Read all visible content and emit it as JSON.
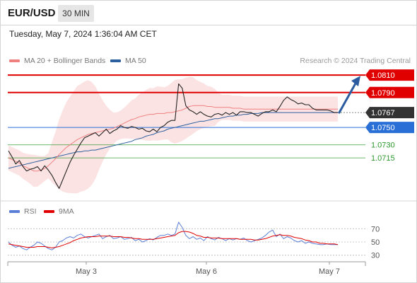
{
  "header": {
    "symbol": "EUR/USD",
    "timeframe": "30 MIN"
  },
  "datetime": "Tuesday, May 7, 2024 1:36:04 AM CET",
  "legend": {
    "ma20_label": "MA 20 + Bollinger Bands",
    "ma50_label": "MA 50",
    "credit": "Research © 2024 Trading Central",
    "rsi_label": "RSI",
    "rsi_ma_label": "9MA"
  },
  "colors": {
    "resistance": "#e00000",
    "support": "#2a6fd6",
    "target": "#2e9a2e",
    "ma20": "#f08080",
    "ma50": "#2c5f9e",
    "band": "#fbd9d9",
    "price": "#222222",
    "current_box": "#333333",
    "arrow": "#2a5b9f",
    "rsi": "#5b7fd6",
    "rsi_ma": "#e00000"
  },
  "chart_data": [
    {
      "type": "line",
      "title": "EUR/USD 30 MIN",
      "xlabel": "",
      "ylabel": "",
      "x_ticks": [
        "May 3",
        "May 6",
        "May 7"
      ],
      "ylim": [
        1.0664,
        1.0815
      ],
      "current_price": 1.0767,
      "levels": [
        {
          "value": 1.081,
          "label": "1.0810",
          "kind": "resistance"
        },
        {
          "value": 1.079,
          "label": "1.0790",
          "kind": "resistance"
        },
        {
          "value": 1.0767,
          "label": "1.0767",
          "kind": "current"
        },
        {
          "value": 1.075,
          "label": "1.0750",
          "kind": "support"
        },
        {
          "value": 1.073,
          "label": "1.0730",
          "kind": "target"
        },
        {
          "value": 1.0715,
          "label": "1.0715",
          "kind": "target"
        }
      ],
      "arrow": {
        "from": 1.0767,
        "to": 1.081,
        "direction": "up"
      },
      "series": [
        {
          "name": "Price",
          "values": [
            1.0723,
            1.0716,
            1.0708,
            1.0712,
            1.0705,
            1.07,
            1.0702,
            1.0703,
            1.0705,
            1.07,
            1.0706,
            1.0701,
            1.0695,
            1.0687,
            1.068,
            1.069,
            1.07,
            1.071,
            1.0718,
            1.0725,
            1.0732,
            1.0738,
            1.074,
            1.0742,
            1.0744,
            1.074,
            1.0744,
            1.0748,
            1.0743,
            1.0746,
            1.0748,
            1.0752,
            1.075,
            1.0749,
            1.0751,
            1.075,
            1.0748,
            1.0749,
            1.0746,
            1.0745,
            1.0748,
            1.0745,
            1.075,
            1.0752,
            1.0756,
            1.0758,
            1.0758,
            1.08,
            1.0795,
            1.0775,
            1.077,
            1.0768,
            1.0765,
            1.0768,
            1.0765,
            1.0763,
            1.0762,
            1.0765,
            1.0766,
            1.0764,
            1.0767,
            1.0765,
            1.0767,
            1.0764,
            1.0768,
            1.0768,
            1.0767,
            1.0767,
            1.0765,
            1.0763,
            1.0766,
            1.0768,
            1.0768,
            1.077,
            1.0768,
            1.0774,
            1.0781,
            1.0785,
            1.0782,
            1.078,
            1.0777,
            1.0778,
            1.0776,
            1.0776,
            1.0772,
            1.077,
            1.077,
            1.077,
            1.077,
            1.0769,
            1.0767,
            1.0767
          ]
        },
        {
          "name": "MA 20",
          "values": [
            1.0715,
            1.0713,
            1.0711,
            1.0709,
            1.0706,
            1.0704,
            1.0702,
            1.07,
            1.07,
            1.0701,
            1.0703,
            1.0706,
            1.071,
            1.0714,
            1.0719,
            1.0723,
            1.0727,
            1.073,
            1.0733,
            1.0736,
            1.0738,
            1.074,
            1.0742,
            1.0743,
            1.0744,
            1.0745,
            1.0746,
            1.0747,
            1.0748,
            1.0749,
            1.0751,
            1.0753,
            1.0755,
            1.0757,
            1.0759,
            1.076,
            1.0762,
            1.0763,
            1.0764,
            1.0765,
            1.0765,
            1.0766,
            1.0766,
            1.0766,
            1.0767,
            1.0767,
            1.0768,
            1.0769,
            1.077,
            1.0772,
            1.0774,
            1.0775,
            1.0775,
            1.0775,
            1.0775,
            1.0774,
            1.0774,
            1.0773,
            1.0773,
            1.0773,
            1.0773,
            1.0773,
            1.0772,
            1.0772,
            1.0772,
            1.0771,
            1.0771,
            1.0771,
            1.0771,
            1.0771,
            1.0771,
            1.0771,
            1.0771,
            1.0771,
            1.0771,
            1.0771,
            1.0771,
            1.0771,
            1.0771,
            1.0771,
            1.0771,
            1.0771,
            1.0771,
            1.0771,
            1.0771,
            1.0771,
            1.0771,
            1.0771,
            1.0771,
            1.0771,
            1.0771,
            1.0771
          ]
        },
        {
          "name": "MA 50",
          "values": [
            1.0703,
            1.0704,
            1.0705,
            1.0706,
            1.0707,
            1.0708,
            1.0709,
            1.071,
            1.0711,
            1.0712,
            1.0713,
            1.0714,
            1.0715,
            1.0716,
            1.0717,
            1.0718,
            1.0719,
            1.072,
            1.0721,
            1.0722,
            1.0722,
            1.0723,
            1.0723,
            1.0724,
            1.0724,
            1.0725,
            1.0726,
            1.0727,
            1.0728,
            1.0729,
            1.073,
            1.0731,
            1.0732,
            1.0733,
            1.0734,
            1.0736,
            1.0737,
            1.0738,
            1.074,
            1.0741,
            1.0742,
            1.0744,
            1.0745,
            1.0746,
            1.0748,
            1.0749,
            1.075,
            1.0751,
            1.0752,
            1.0753,
            1.0754,
            1.0755,
            1.0756,
            1.0757,
            1.0757,
            1.0758,
            1.0759,
            1.076,
            1.076,
            1.0761,
            1.0762,
            1.0763,
            1.0763,
            1.0764,
            1.0764,
            1.0765,
            1.0765,
            1.0766,
            1.0766,
            1.0766,
            1.0767,
            1.0767,
            1.0767,
            1.0767,
            1.0767,
            1.0767,
            1.0767,
            1.0767,
            1.0767,
            1.0767,
            1.0767,
            1.0767,
            1.0767,
            1.0767,
            1.0767,
            1.0767,
            1.0767,
            1.0767,
            1.0767,
            1.0767,
            1.0767,
            1.0767
          ]
        }
      ]
    },
    {
      "type": "line",
      "title": "",
      "xlabel": "",
      "ylabel": "",
      "yticks": [
        70,
        50,
        30
      ],
      "ylim": [
        20,
        80
      ],
      "series": [
        {
          "name": "RSI",
          "values": [
            50,
            45,
            42,
            44,
            40,
            38,
            42,
            45,
            50,
            48,
            44,
            40,
            38,
            42,
            50,
            52,
            56,
            58,
            56,
            60,
            62,
            58,
            56,
            58,
            60,
            62,
            55,
            58,
            60,
            55,
            56,
            58,
            54,
            55,
            57,
            52,
            54,
            50,
            52,
            55,
            53,
            57,
            60,
            60,
            62,
            60,
            62,
            80,
            72,
            60,
            55,
            58,
            54,
            56,
            52,
            58,
            55,
            53,
            57,
            55,
            52,
            55,
            53,
            55,
            54,
            56,
            52,
            50,
            52,
            54,
            56,
            60,
            65,
            68,
            58,
            62,
            55,
            58,
            56,
            52,
            50,
            52,
            48,
            50,
            48,
            47,
            46,
            46,
            47,
            46,
            46,
            46
          ]
        },
        {
          "name": "9MA",
          "values": [
            47,
            46,
            45,
            44,
            43,
            42,
            42,
            42,
            43,
            43,
            43,
            42,
            41,
            42,
            43,
            45,
            47,
            49,
            52,
            54,
            56,
            57,
            58,
            58,
            58,
            59,
            59,
            59,
            59,
            58,
            58,
            58,
            57,
            57,
            56,
            55,
            55,
            54,
            54,
            54,
            54,
            55,
            56,
            57,
            58,
            59,
            60,
            64,
            66,
            66,
            65,
            63,
            60,
            59,
            57,
            57,
            56,
            56,
            56,
            55,
            55,
            55,
            55,
            55,
            54,
            54,
            54,
            54,
            53,
            53,
            54,
            55,
            57,
            59,
            60,
            61,
            60,
            60,
            59,
            57,
            56,
            55,
            53,
            52,
            50,
            50,
            48,
            48,
            47,
            47,
            47,
            46
          ]
        }
      ]
    }
  ]
}
